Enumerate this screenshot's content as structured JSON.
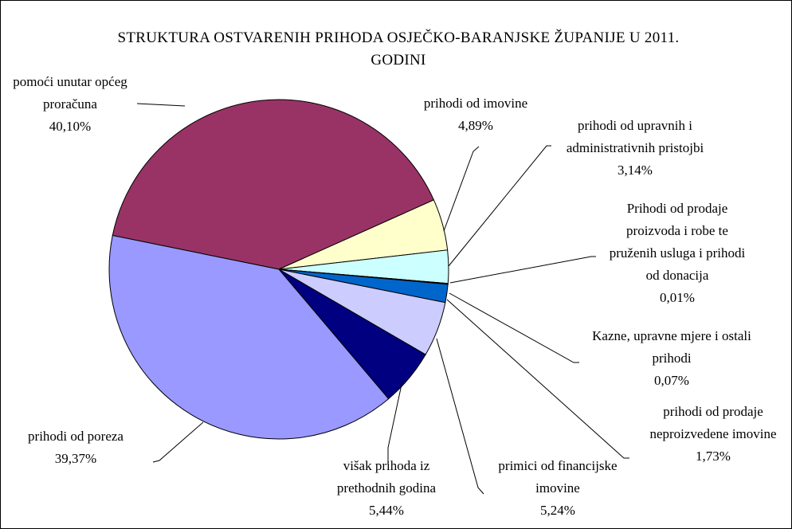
{
  "chart_data": {
    "type": "pie",
    "title": "STRUKTURA OSTVARENIH PRIHODA OSJEČKO-BARANJSKE ŽUPANIJE U 2011. GODINI",
    "categories": [
      "pomoći unutar općeg proračuna",
      "prihodi od imovine",
      "prihodi od upravnih i administrativnih pristojbi",
      "Prihodi od prodaje proizvoda i robe te pruženih usluga i prihodi od donacija",
      "Kazne, upravne mjere i ostali prihodi",
      "prihodi od prodaje neproizvedene imovine",
      "primici od financijske imovine",
      "višak prihoda iz prethodnih godina",
      "prihodi od poreza"
    ],
    "values": [
      40.1,
      4.89,
      3.14,
      0.01,
      0.07,
      1.73,
      5.24,
      5.44,
      39.37
    ],
    "value_labels": [
      "40,10%",
      "4,89%",
      "3,14%",
      "0,01%",
      "0,07%",
      "1,73%",
      "5,24%",
      "5,44%",
      "39,37%"
    ],
    "colors": [
      "#993366",
      "#ffffcc",
      "#ccffff",
      "#660066",
      "#ff8080",
      "#0066cc",
      "#ccccff",
      "#000080",
      "#9999ff"
    ]
  }
}
